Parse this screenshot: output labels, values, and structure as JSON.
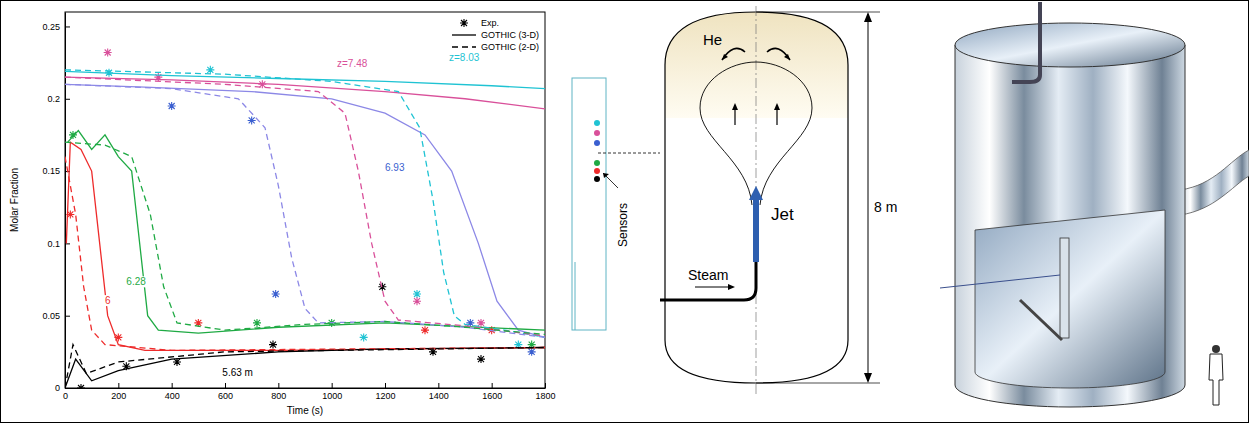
{
  "chart_data": {
    "type": "line",
    "xlabel": "Time (s)",
    "ylabel": "Molar Fraction",
    "xlim": [
      0,
      1800
    ],
    "xticks": [
      0,
      200,
      400,
      600,
      800,
      1000,
      1200,
      1400,
      1600,
      1800
    ],
    "ylim": [
      0,
      0.26
    ],
    "yticks": [
      0,
      0.05,
      0.1,
      0.15,
      0.2,
      0.25
    ],
    "legend": "upper right",
    "series": [
      {
        "name": "Exp.",
        "type": "scatter",
        "marker": "asterisk",
        "color": "#000000",
        "curves": [
          {
            "color": "#1fc3d3",
            "x": [
              165,
              545,
              1120,
              1320,
              1700
            ],
            "values": [
              0.218,
              0.22,
              0.035,
              0.065,
              0.03
            ]
          },
          {
            "color": "#d9509a",
            "x": [
              160,
              350,
              740,
              1320,
              1560
            ],
            "values": [
              0.232,
              0.215,
              0.21,
              0.06,
              0.045
            ]
          },
          {
            "color": "#3a5fd0",
            "x": [
              400,
              700,
              790,
              1520,
              1750
            ],
            "values": [
              0.195,
              0.185,
              0.065,
              0.045,
              0.025
            ]
          },
          {
            "color": "#1faa44",
            "x": [
              30,
              720,
              1000,
              1750
            ],
            "values": [
              0.175,
              0.045,
              0.045,
              0.03
            ]
          },
          {
            "color": "#ee2b2b",
            "x": [
              20,
              200,
              500,
              1350,
              1600
            ],
            "values": [
              0.12,
              0.035,
              0.045,
              0.04,
              0.04
            ]
          },
          {
            "color": "#000000",
            "x": [
              60,
              230,
              420,
              780,
              1190,
              1380,
              1560
            ],
            "values": [
              0,
              0.015,
              0.018,
              0.03,
              0.07,
              0.025,
              0.02
            ]
          }
        ]
      },
      {
        "name": "GOTHIC (3-D)",
        "type": "line",
        "line_style": "solid",
        "color": "#000000",
        "curves": [
          {
            "color": "#1fc3d3",
            "x": [
              0,
              400,
              800,
              1200,
              1600,
              1800
            ],
            "values": [
              0.219,
              0.216,
              0.214,
              0.212,
              0.209,
              0.207
            ]
          },
          {
            "color": "#d9509a",
            "x": [
              0,
              400,
              800,
              1200,
              1500,
              1800
            ],
            "values": [
              0.215,
              0.213,
              0.21,
              0.205,
              0.2,
              0.193
            ]
          },
          {
            "color": "#8c88e6",
            "x": [
              0,
              300,
              700,
              1000,
              1200,
              1350,
              1450,
              1550,
              1620,
              1700,
              1800
            ],
            "values": [
              0.21,
              0.208,
              0.205,
              0.2,
              0.19,
              0.175,
              0.15,
              0.1,
              0.06,
              0.04,
              0.035
            ]
          },
          {
            "color": "#1faa44",
            "x": [
              10,
              50,
              100,
              150,
              200,
              250,
              280,
              310,
              350,
              500,
              800,
              1200,
              1800
            ],
            "values": [
              0.17,
              0.178,
              0.165,
              0.175,
              0.16,
              0.15,
              0.1,
              0.05,
              0.04,
              0.038,
              0.042,
              0.045,
              0.04
            ]
          },
          {
            "color": "#ee2b2b",
            "x": [
              5,
              20,
              60,
              100,
              130,
              160,
              200,
              300,
              800,
              1800
            ],
            "values": [
              0.1,
              0.17,
              0.165,
              0.15,
              0.1,
              0.05,
              0.03,
              0.026,
              0.026,
              0.028
            ]
          },
          {
            "color": "#000000",
            "x": [
              0,
              40,
              100,
              200,
              400,
              800,
              1200,
              1800
            ],
            "values": [
              0,
              0.02,
              0.005,
              0.012,
              0.02,
              0.025,
              0.027,
              0.028
            ]
          }
        ]
      },
      {
        "name": "GOTHIC (2-D)",
        "type": "line",
        "line_style": "dashed",
        "color": "#000000",
        "curves": [
          {
            "color": "#1fc3d3",
            "x": [
              0,
              600,
              1000,
              1250,
              1330,
              1380,
              1420,
              1460,
              1500,
              1650,
              1800
            ],
            "values": [
              0.22,
              0.217,
              0.212,
              0.205,
              0.18,
              0.13,
              0.08,
              0.05,
              0.044,
              0.04,
              0.035
            ]
          },
          {
            "color": "#d9509a",
            "x": [
              0,
              600,
              950,
              1050,
              1100,
              1150,
              1200,
              1250,
              1500,
              1800
            ],
            "values": [
              0.215,
              0.21,
              0.205,
              0.19,
              0.15,
              0.1,
              0.06,
              0.047,
              0.043,
              0.036
            ]
          },
          {
            "color": "#8c88e6",
            "x": [
              0,
              400,
              650,
              750,
              800,
              850,
              900,
              950,
              1200,
              1500,
              1800
            ],
            "values": [
              0.21,
              0.207,
              0.2,
              0.18,
              0.14,
              0.09,
              0.055,
              0.045,
              0.046,
              0.042,
              0.035
            ]
          },
          {
            "color": "#1faa44",
            "x": [
              0,
              150,
              250,
              320,
              370,
              420,
              600,
              900,
              1200,
              1500,
              1800
            ],
            "values": [
              0.17,
              0.168,
              0.16,
              0.12,
              0.07,
              0.045,
              0.04,
              0.044,
              0.046,
              0.042,
              0.037
            ]
          },
          {
            "color": "#ee2b2b",
            "x": [
              0,
              40,
              70,
              100,
              150,
              400,
              1800
            ],
            "values": [
              0.16,
              0.12,
              0.07,
              0.04,
              0.03,
              0.026,
              0.028
            ]
          },
          {
            "color": "#000000",
            "x": [
              0,
              30,
              80,
              200,
              600,
              1800
            ],
            "values": [
              0,
              0.03,
              0.01,
              0.018,
              0.025,
              0.028
            ]
          }
        ]
      }
    ],
    "annotations": [
      {
        "text": "z=8.03",
        "x": 1440,
        "y": 0.226,
        "color": "#1fc3d3"
      },
      {
        "text": "z=7.48",
        "x": 1020,
        "y": 0.222,
        "color": "#d9509a"
      },
      {
        "text": "6.93",
        "x": 1200,
        "y": 0.15,
        "color": "#3a5fd0"
      },
      {
        "text": "6.28",
        "x": 230,
        "y": 0.071,
        "color": "#1faa44"
      },
      {
        "text": "6",
        "x": 150,
        "y": 0.058,
        "color": "#ee2b2b"
      },
      {
        "text": "5.63 m",
        "x": 590,
        "y": 0.008,
        "color": "#000000"
      }
    ]
  },
  "diagram": {
    "sensor_label": "Sensors",
    "schematic": {
      "gas": "He",
      "jet": "Jet",
      "inlet": "Steam",
      "height": "8 m"
    }
  }
}
